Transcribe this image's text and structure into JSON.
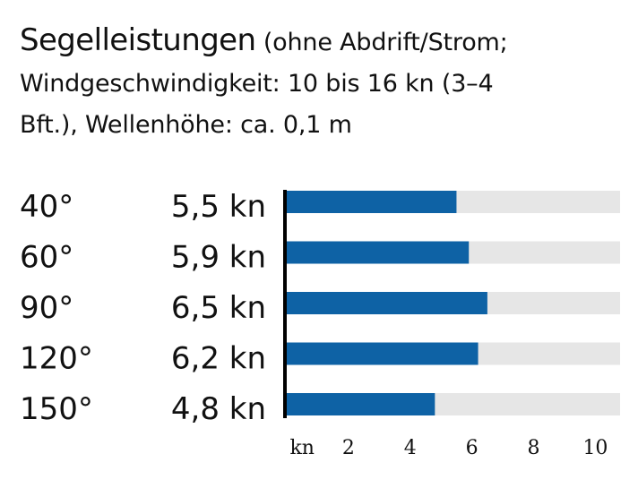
{
  "header": {
    "title": "Segelleistungen",
    "subtitle_part1": " (ohne Abdrift/Strom;",
    "subtitle_line2": "Windgeschwindigkeit: 10 bis 16 kn (3–4",
    "subtitle_line3": "Bft.), Wellenhöhe: ca. 0,1 m"
  },
  "chart_data": {
    "type": "bar",
    "orientation": "horizontal",
    "title": "Segelleistungen",
    "categories": [
      "40°",
      "60°",
      "90°",
      "120°",
      "150°"
    ],
    "value_labels": [
      "5,5 kn",
      "5,9 kn",
      "6,5 kn",
      "6,2 kn",
      "4,8 kn"
    ],
    "values": [
      5.5,
      5.9,
      6.5,
      6.2,
      4.8
    ],
    "xlim": [
      0,
      10.8
    ],
    "x_ticks": [
      "kn",
      "2",
      "4",
      "6",
      "8",
      "10"
    ],
    "x_tick_values": [
      0.5,
      2,
      4,
      6,
      8,
      10
    ],
    "background_track": true,
    "grid": false,
    "colors": {
      "bar": "#0e62a5",
      "track": "#e6e6e6",
      "axis": "#000000",
      "text": "#111111"
    }
  }
}
